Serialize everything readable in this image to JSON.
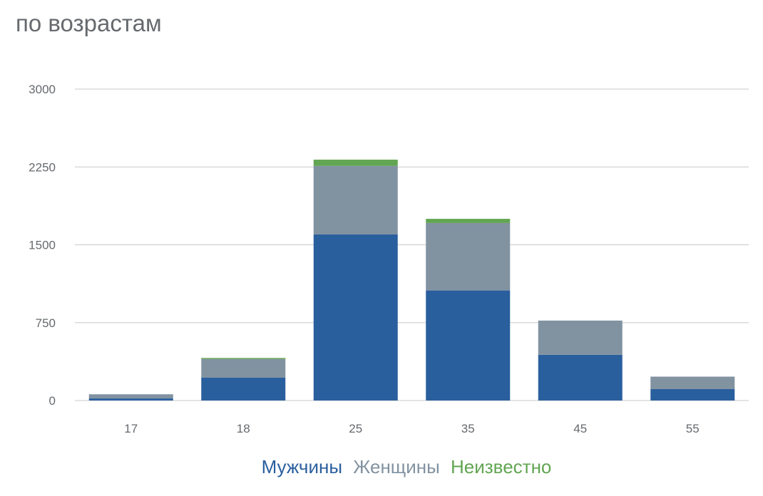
{
  "title": "по возрастам",
  "colors": {
    "men": "#2a5f9e",
    "women": "#8192a1",
    "unknown": "#62a552",
    "grid": "#c8c8c8",
    "text": "#666a6e"
  },
  "chart_data": {
    "type": "bar",
    "stacked": true,
    "title": "по возрастам",
    "xlabel": "",
    "ylabel": "",
    "categories": [
      "17",
      "18",
      "25",
      "35",
      "45",
      "55"
    ],
    "series": [
      {
        "name": "Мужчины",
        "values": [
          20,
          220,
          1600,
          1060,
          440,
          110
        ]
      },
      {
        "name": "Женщины",
        "values": [
          40,
          180,
          660,
          650,
          330,
          120
        ]
      },
      {
        "name": "Неизвестно",
        "values": [
          0,
          10,
          60,
          40,
          0,
          0
        ]
      }
    ],
    "ylim": [
      0,
      3000
    ],
    "yticks": [
      "0",
      "750",
      "1500",
      "2250",
      "3000"
    ],
    "grid": true,
    "legend": "bottom"
  }
}
